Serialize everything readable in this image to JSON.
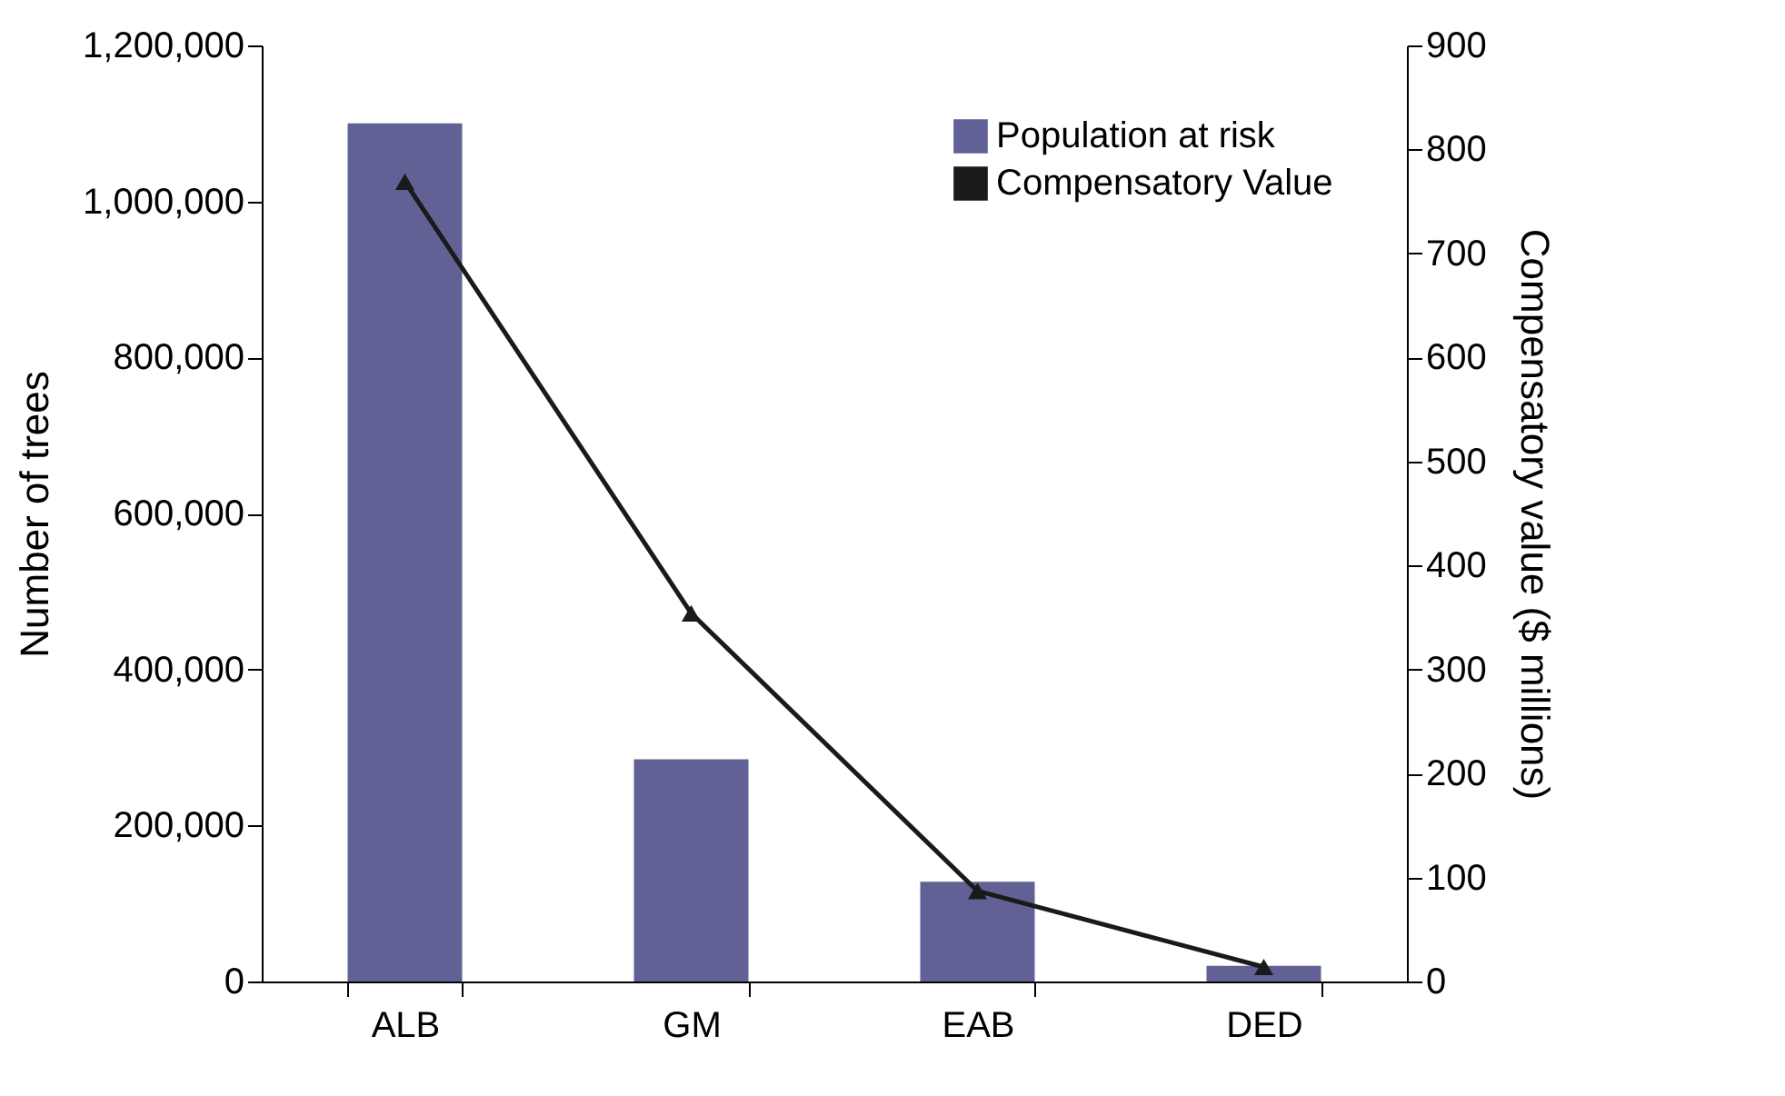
{
  "chart_data": {
    "type": "bar",
    "categories": [
      "ALB",
      "GM",
      "EAB",
      "DED"
    ],
    "ylabel": "Number of trees",
    "y2label": "Compensatory value ($ millions)",
    "series": [
      {
        "name": "Population at risk",
        "color": "#616196",
        "values": [
          1100000,
          285000,
          128000,
          20000
        ]
      },
      {
        "name": "Compensatory Value",
        "type": "line",
        "axis": "y2",
        "color": "#1a1a1a",
        "marker": "triangle",
        "values": [
          769,
          354,
          87,
          14
        ]
      }
    ],
    "ylim": [
      0,
      1200000
    ],
    "yticks": [
      0,
      {
        "value": 200000,
        "label": "200,000"
      },
      {
        "value": 400000,
        "label": "400,000"
      },
      {
        "value": 600000,
        "label": "600,000"
      },
      {
        "value": 800000,
        "label": "800,000"
      },
      {
        "value": 1000000,
        "label": "1,000,000"
      },
      {
        "value": 1200000,
        "label": "1,200,000"
      }
    ],
    "y2lim": [
      0,
      900
    ],
    "y2ticks": [
      0,
      100,
      200,
      300,
      400,
      500,
      600,
      700,
      800,
      900
    ],
    "grid": false,
    "legend": "top right"
  }
}
